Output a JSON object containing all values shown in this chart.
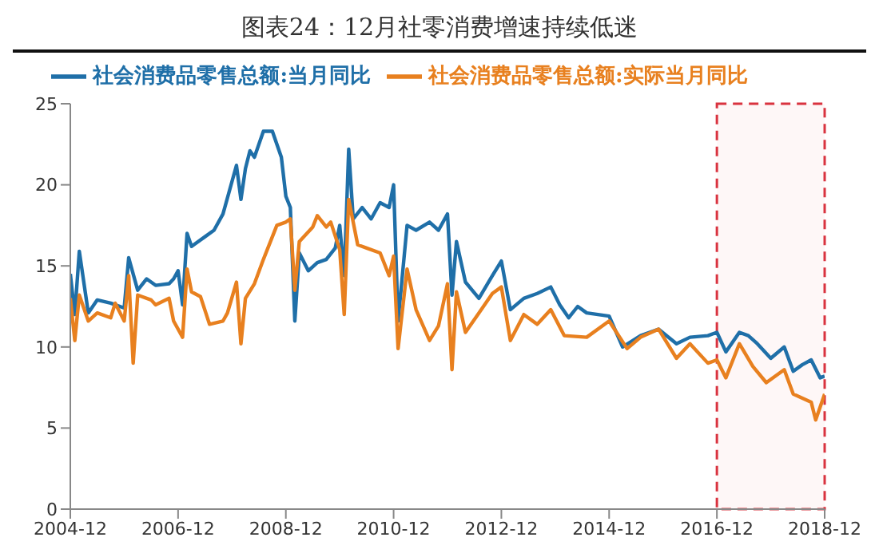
{
  "chart_data": {
    "type": "line",
    "title": "图表24：12月社零消费增速持续低迷",
    "xlim": [
      "2004-12",
      "2018-12"
    ],
    "xticks": [
      "2004-12",
      "2006-12",
      "2008-12",
      "2010-12",
      "2012-12",
      "2014-12",
      "2016-12",
      "2018-12"
    ],
    "ylim": [
      0,
      25
    ],
    "yticks": [
      0,
      5,
      10,
      15,
      20,
      25
    ],
    "grid": false,
    "legend": "top",
    "marker": "none",
    "bands": [
      {
        "axis": "x",
        "from": "2016-12",
        "to": "2018-12",
        "color": "#d9333f"
      }
    ],
    "series": [
      {
        "name": "社会消费品零售总额:当月同比",
        "color": "#1f6fa8",
        "x": [
          "2004-12",
          "2005-01",
          "2005-02",
          "2005-04",
          "2005-06",
          "2005-09",
          "2005-12",
          "2006-01",
          "2006-03",
          "2006-05",
          "2006-07",
          "2006-10",
          "2006-11",
          "2006-12",
          "2007-01",
          "2007-02",
          "2007-03",
          "2007-06",
          "2007-08",
          "2007-10",
          "2008-01",
          "2008-02",
          "2008-03",
          "2008-04",
          "2008-05",
          "2008-07",
          "2008-09",
          "2008-11",
          "2008-12",
          "2009-01",
          "2009-02",
          "2009-03",
          "2009-05",
          "2009-07",
          "2009-09",
          "2009-11",
          "2009-12",
          "2010-01",
          "2010-02",
          "2010-03",
          "2010-05",
          "2010-07",
          "2010-09",
          "2010-11",
          "2010-12",
          "2011-01",
          "2011-03",
          "2011-05",
          "2011-08",
          "2011-10",
          "2011-12",
          "2012-01",
          "2012-02",
          "2012-04",
          "2012-07",
          "2012-10",
          "2012-12",
          "2013-02",
          "2013-05",
          "2013-08",
          "2013-11",
          "2014-01",
          "2014-03",
          "2014-05",
          "2014-07",
          "2014-12",
          "2015-03",
          "2015-07",
          "2015-11",
          "2016-03",
          "2016-06",
          "2016-10",
          "2016-12",
          "2017-02",
          "2017-05",
          "2017-07",
          "2017-09",
          "2017-12",
          "2018-03",
          "2018-05",
          "2018-07",
          "2018-09",
          "2018-11",
          "2018-12"
        ],
        "values": [
          14.5,
          12.0,
          15.9,
          12.1,
          12.9,
          12.7,
          12.4,
          15.5,
          13.5,
          14.2,
          13.8,
          13.9,
          14.2,
          14.7,
          12.6,
          17.0,
          16.2,
          16.8,
          17.2,
          18.2,
          21.2,
          19.1,
          21.0,
          22.1,
          21.7,
          23.3,
          23.3,
          21.7,
          19.3,
          18.6,
          11.6,
          15.8,
          14.7,
          15.2,
          15.4,
          16.1,
          17.5,
          14.4,
          22.2,
          17.9,
          18.6,
          17.9,
          18.9,
          18.6,
          20.0,
          11.6,
          17.5,
          17.2,
          17.7,
          17.2,
          18.2,
          13.2,
          16.5,
          14.0,
          13.0,
          14.4,
          15.3,
          12.3,
          13.0,
          13.3,
          13.7,
          12.6,
          11.8,
          12.5,
          12.1,
          11.9,
          10.0,
          10.7,
          11.1,
          10.2,
          10.6,
          10.7,
          10.9,
          9.7,
          10.9,
          10.7,
          10.2,
          9.3,
          10.0,
          8.5,
          8.9,
          9.2,
          8.1,
          8.2
        ]
      },
      {
        "name": "社会消费品零售总额:实际当月同比",
        "color": "#e8801f",
        "x": [
          "2004-12",
          "2005-01",
          "2005-02",
          "2005-04",
          "2005-06",
          "2005-09",
          "2005-10",
          "2005-12",
          "2006-01",
          "2006-02",
          "2006-03",
          "2006-06",
          "2006-07",
          "2006-10",
          "2006-11",
          "2007-01",
          "2007-02",
          "2007-03",
          "2007-05",
          "2007-07",
          "2007-10",
          "2007-11",
          "2008-01",
          "2008-02",
          "2008-03",
          "2008-05",
          "2008-07",
          "2008-09",
          "2008-10",
          "2008-12",
          "2009-01",
          "2009-02",
          "2009-03",
          "2009-06",
          "2009-07",
          "2009-09",
          "2009-10",
          "2009-12",
          "2010-01",
          "2010-02",
          "2010-04",
          "2010-06",
          "2010-09",
          "2010-11",
          "2010-12",
          "2011-01",
          "2011-03",
          "2011-05",
          "2011-08",
          "2011-10",
          "2011-12",
          "2012-01",
          "2012-02",
          "2012-04",
          "2012-07",
          "2012-10",
          "2012-12",
          "2013-02",
          "2013-05",
          "2013-08",
          "2013-11",
          "2014-02",
          "2014-07",
          "2014-12",
          "2015-04",
          "2015-07",
          "2015-11",
          "2016-03",
          "2016-06",
          "2016-10",
          "2016-12",
          "2017-02",
          "2017-05",
          "2017-08",
          "2017-11",
          "2018-03",
          "2018-05",
          "2018-09",
          "2018-10",
          "2018-12"
        ],
        "values": [
          13.0,
          10.4,
          13.2,
          11.6,
          12.1,
          11.8,
          12.7,
          11.6,
          14.4,
          9.0,
          13.2,
          12.9,
          12.6,
          13.0,
          11.6,
          10.6,
          14.8,
          13.4,
          13.1,
          11.4,
          11.6,
          12.1,
          14.0,
          10.2,
          13.0,
          13.9,
          15.4,
          16.8,
          17.5,
          17.7,
          17.9,
          13.5,
          16.5,
          17.4,
          18.1,
          17.4,
          17.7,
          16.0,
          12.0,
          19.1,
          16.3,
          16.1,
          15.8,
          14.4,
          15.6,
          9.9,
          14.8,
          12.3,
          10.4,
          11.3,
          13.9,
          8.6,
          13.4,
          10.9,
          12.1,
          13.3,
          13.7,
          10.4,
          12.0,
          11.4,
          12.3,
          10.7,
          10.6,
          11.6,
          9.9,
          10.6,
          11.1,
          9.3,
          10.2,
          9.0,
          9.2,
          8.1,
          10.2,
          8.8,
          7.8,
          8.6,
          7.1,
          6.6,
          5.5,
          7.1
        ]
      }
    ]
  }
}
